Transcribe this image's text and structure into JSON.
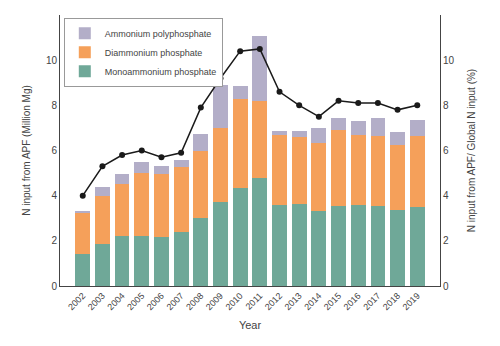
{
  "chart_data": {
    "type": "bar",
    "stacked": true,
    "categories": [
      "2002",
      "2003",
      "2004",
      "2005",
      "2006",
      "2007",
      "2008",
      "2009",
      "2010",
      "2011",
      "2012",
      "2013",
      "2014",
      "2015",
      "2016",
      "2017",
      "2018",
      "2019"
    ],
    "series": [
      {
        "name": "Monoammonium phosphate",
        "color": "#6fa898",
        "values": [
          1.4,
          1.85,
          2.2,
          2.2,
          2.15,
          2.4,
          3.0,
          3.7,
          4.35,
          4.8,
          3.6,
          3.65,
          3.3,
          3.55,
          3.6,
          3.55,
          3.35,
          3.5
        ]
      },
      {
        "name": "Diammonium phosphate",
        "color": "#f5a05a",
        "values": [
          1.85,
          2.15,
          2.3,
          2.8,
          2.8,
          2.85,
          3.0,
          3.3,
          3.95,
          3.4,
          3.1,
          2.95,
          3.05,
          3.35,
          3.1,
          3.1,
          2.9,
          3.15
        ]
      },
      {
        "name": "Ammonium polyphosphate",
        "color": "#b3aec8",
        "values": [
          0.05,
          0.4,
          0.45,
          0.5,
          0.35,
          0.35,
          0.75,
          1.9,
          0.55,
          2.85,
          0.15,
          0.25,
          0.65,
          0.55,
          0.6,
          0.8,
          0.55,
          0.7
        ]
      },
      {
        "type": "line",
        "axis": "y2",
        "color": "#1a1a1a",
        "marker": "circle",
        "line_style": "solid",
        "values": [
          4.0,
          5.3,
          5.8,
          6.0,
          5.7,
          5.9,
          7.9,
          9.2,
          10.4,
          10.5,
          8.6,
          8.0,
          7.5,
          8.2,
          8.1,
          8.1,
          7.8,
          8.0
        ]
      }
    ],
    "xlabel": "Year",
    "ylabel": "N input from APF (Million Mg)",
    "y2label": "N input from APF/ Global N input (%)",
    "ylim": [
      0,
      12
    ],
    "yticks": [
      0,
      2,
      4,
      6,
      8,
      10
    ],
    "y2lim": [
      0,
      12
    ],
    "y2ticks": [
      0,
      2,
      4,
      6,
      8,
      10
    ],
    "legend": "upper left",
    "grid": false
  }
}
